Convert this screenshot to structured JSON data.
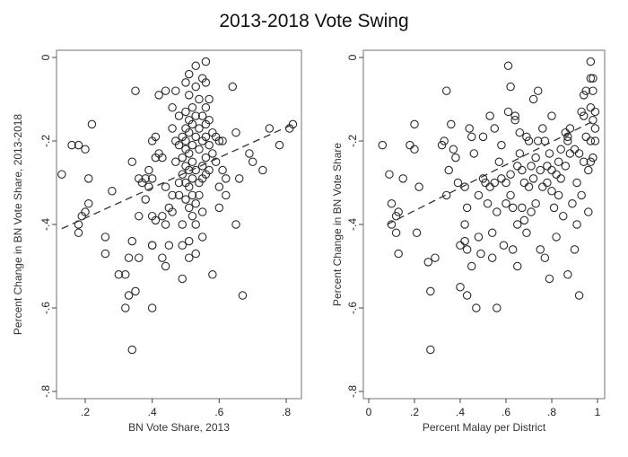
{
  "chart_data": {
    "title": "2013-2018 Vote Swing",
    "panels": [
      {
        "type": "scatter",
        "xlabel": "BN Vote Share, 2013",
        "ylabel": "Percent Change in BN Vote Share, 2013-2018",
        "xlim": [
          0.11,
          0.84
        ],
        "ylim": [
          -0.82,
          0.02
        ],
        "xticks": [
          0.2,
          0.4,
          0.6,
          0.8
        ],
        "xtick_labels": [
          ".2",
          ".4",
          ".6",
          ".8"
        ],
        "yticks": [
          0,
          -0.2,
          -0.4,
          -0.6,
          -0.8
        ],
        "ytick_labels": [
          "0",
          "-.2",
          "-.4",
          "-.6",
          "-.8"
        ],
        "fit_line": {
          "x": [
            0.13,
            0.82
          ],
          "y": [
            -0.41,
            -0.16
          ]
        },
        "points": [
          [
            0.13,
            -0.28
          ],
          [
            0.16,
            -0.21
          ],
          [
            0.18,
            -0.21
          ],
          [
            0.2,
            -0.22
          ],
          [
            0.22,
            -0.16
          ],
          [
            0.21,
            -0.29
          ],
          [
            0.21,
            -0.35
          ],
          [
            0.2,
            -0.37
          ],
          [
            0.19,
            -0.38
          ],
          [
            0.18,
            -0.4
          ],
          [
            0.18,
            -0.42
          ],
          [
            0.26,
            -0.43
          ],
          [
            0.26,
            -0.47
          ],
          [
            0.28,
            -0.32
          ],
          [
            0.3,
            -0.52
          ],
          [
            0.32,
            -0.6
          ],
          [
            0.32,
            -0.52
          ],
          [
            0.33,
            -0.57
          ],
          [
            0.33,
            -0.48
          ],
          [
            0.34,
            -0.44
          ],
          [
            0.35,
            -0.56
          ],
          [
            0.34,
            -0.7
          ],
          [
            0.36,
            -0.48
          ],
          [
            0.34,
            -0.25
          ],
          [
            0.36,
            -0.29
          ],
          [
            0.36,
            -0.38
          ],
          [
            0.37,
            -0.3
          ],
          [
            0.38,
            -0.34
          ],
          [
            0.38,
            -0.29
          ],
          [
            0.39,
            -0.27
          ],
          [
            0.39,
            -0.31
          ],
          [
            0.4,
            -0.29
          ],
          [
            0.4,
            -0.38
          ],
          [
            0.4,
            -0.45
          ],
          [
            0.4,
            -0.45
          ],
          [
            0.41,
            -0.39
          ],
          [
            0.4,
            -0.6
          ],
          [
            0.41,
            -0.24
          ],
          [
            0.35,
            -0.08
          ],
          [
            0.4,
            -0.2
          ],
          [
            0.41,
            -0.19
          ],
          [
            0.42,
            -0.23
          ],
          [
            0.42,
            -0.09
          ],
          [
            0.43,
            -0.24
          ],
          [
            0.43,
            -0.38
          ],
          [
            0.44,
            -0.4
          ],
          [
            0.43,
            -0.48
          ],
          [
            0.44,
            -0.5
          ],
          [
            0.45,
            -0.45
          ],
          [
            0.45,
            -0.36
          ],
          [
            0.44,
            -0.31
          ],
          [
            0.46,
            -0.33
          ],
          [
            0.46,
            -0.37
          ],
          [
            0.44,
            -0.08
          ],
          [
            0.46,
            -0.12
          ],
          [
            0.46,
            -0.17
          ],
          [
            0.47,
            -0.08
          ],
          [
            0.47,
            -0.2
          ],
          [
            0.47,
            -0.25
          ],
          [
            0.48,
            -0.14
          ],
          [
            0.48,
            -0.21
          ],
          [
            0.48,
            -0.3
          ],
          [
            0.48,
            -0.33
          ],
          [
            0.49,
            -0.19
          ],
          [
            0.49,
            -0.24
          ],
          [
            0.49,
            -0.28
          ],
          [
            0.49,
            -0.4
          ],
          [
            0.49,
            -0.45
          ],
          [
            0.49,
            -0.53
          ],
          [
            0.5,
            -0.06
          ],
          [
            0.5,
            -0.13
          ],
          [
            0.5,
            -0.17
          ],
          [
            0.5,
            -0.2
          ],
          [
            0.5,
            -0.22
          ],
          [
            0.5,
            -0.26
          ],
          [
            0.5,
            -0.3
          ],
          [
            0.5,
            -0.34
          ],
          [
            0.51,
            -0.04
          ],
          [
            0.51,
            -0.09
          ],
          [
            0.51,
            -0.15
          ],
          [
            0.51,
            -0.18
          ],
          [
            0.51,
            -0.23
          ],
          [
            0.51,
            -0.27
          ],
          [
            0.51,
            -0.31
          ],
          [
            0.51,
            -0.36
          ],
          [
            0.51,
            -0.44
          ],
          [
            0.51,
            -0.48
          ],
          [
            0.52,
            -0.12
          ],
          [
            0.52,
            -0.16
          ],
          [
            0.52,
            -0.21
          ],
          [
            0.52,
            -0.25
          ],
          [
            0.52,
            -0.29
          ],
          [
            0.52,
            -0.33
          ],
          [
            0.52,
            -0.38
          ],
          [
            0.53,
            -0.02
          ],
          [
            0.53,
            -0.07
          ],
          [
            0.53,
            -0.14
          ],
          [
            0.53,
            -0.19
          ],
          [
            0.53,
            -0.27
          ],
          [
            0.53,
            -0.35
          ],
          [
            0.53,
            -0.4
          ],
          [
            0.53,
            -0.47
          ],
          [
            0.54,
            -0.1
          ],
          [
            0.54,
            -0.17
          ],
          [
            0.54,
            -0.22
          ],
          [
            0.54,
            -0.3
          ],
          [
            0.54,
            -0.33
          ],
          [
            0.55,
            -0.05
          ],
          [
            0.55,
            -0.14
          ],
          [
            0.55,
            -0.2
          ],
          [
            0.55,
            -0.26
          ],
          [
            0.55,
            -0.29
          ],
          [
            0.55,
            -0.37
          ],
          [
            0.55,
            -0.43
          ],
          [
            0.56,
            -0.01
          ],
          [
            0.56,
            -0.06
          ],
          [
            0.56,
            -0.12
          ],
          [
            0.56,
            -0.16
          ],
          [
            0.56,
            -0.19
          ],
          [
            0.56,
            -0.24
          ],
          [
            0.56,
            -0.28
          ],
          [
            0.57,
            -0.1
          ],
          [
            0.57,
            -0.15
          ],
          [
            0.57,
            -0.21
          ],
          [
            0.57,
            -0.27
          ],
          [
            0.58,
            -0.18
          ],
          [
            0.58,
            -0.23
          ],
          [
            0.58,
            -0.52
          ],
          [
            0.59,
            -0.19
          ],
          [
            0.59,
            -0.25
          ],
          [
            0.6,
            -0.2
          ],
          [
            0.6,
            -0.31
          ],
          [
            0.6,
            -0.36
          ],
          [
            0.61,
            -0.2
          ],
          [
            0.61,
            -0.27
          ],
          [
            0.62,
            -0.29
          ],
          [
            0.62,
            -0.33
          ],
          [
            0.64,
            -0.07
          ],
          [
            0.65,
            -0.4
          ],
          [
            0.65,
            -0.18
          ],
          [
            0.67,
            -0.57
          ],
          [
            0.66,
            -0.29
          ],
          [
            0.69,
            -0.23
          ],
          [
            0.7,
            -0.25
          ],
          [
            0.73,
            -0.27
          ],
          [
            0.75,
            -0.17
          ],
          [
            0.78,
            -0.21
          ],
          [
            0.82,
            -0.16
          ],
          [
            0.81,
            -0.17
          ]
        ]
      },
      {
        "type": "scatter",
        "xlabel": "Percent Malay per District",
        "ylabel": "Percent Change in BN Vote Share",
        "xlim": [
          -0.025,
          1.03
        ],
        "ylim": [
          -0.82,
          0.02
        ],
        "xticks": [
          0,
          0.2,
          0.4,
          0.6,
          0.8,
          1
        ],
        "xtick_labels": [
          "0",
          ".2",
          ".4",
          ".6",
          ".8",
          "1"
        ],
        "yticks": [
          0,
          -0.2,
          -0.4,
          -0.6,
          -0.8
        ],
        "ytick_labels": [
          "0",
          "-.2",
          "-.4",
          "-.6",
          "-.8"
        ],
        "fit_line": {
          "x": [
            0.08,
            0.99
          ],
          "y": [
            -0.4,
            -0.15
          ]
        },
        "points": [
          [
            0.06,
            -0.21
          ],
          [
            0.09,
            -0.28
          ],
          [
            0.1,
            -0.35
          ],
          [
            0.1,
            -0.4
          ],
          [
            0.12,
            -0.38
          ],
          [
            0.13,
            -0.37
          ],
          [
            0.12,
            -0.42
          ],
          [
            0.13,
            -0.47
          ],
          [
            0.15,
            -0.29
          ],
          [
            0.18,
            -0.21
          ],
          [
            0.2,
            -0.22
          ],
          [
            0.2,
            -0.16
          ],
          [
            0.21,
            -0.42
          ],
          [
            0.22,
            -0.31
          ],
          [
            0.26,
            -0.49
          ],
          [
            0.27,
            -0.56
          ],
          [
            0.27,
            -0.7
          ],
          [
            0.29,
            -0.48
          ],
          [
            0.32,
            -0.21
          ],
          [
            0.33,
            -0.2
          ],
          [
            0.34,
            -0.08
          ],
          [
            0.34,
            -0.33
          ],
          [
            0.35,
            -0.27
          ],
          [
            0.36,
            -0.16
          ],
          [
            0.37,
            -0.22
          ],
          [
            0.38,
            -0.24
          ],
          [
            0.39,
            -0.3
          ],
          [
            0.4,
            -0.45
          ],
          [
            0.4,
            -0.55
          ],
          [
            0.42,
            -0.44
          ],
          [
            0.42,
            -0.31
          ],
          [
            0.42,
            -0.4
          ],
          [
            0.43,
            -0.36
          ],
          [
            0.43,
            -0.46
          ],
          [
            0.43,
            -0.57
          ],
          [
            0.44,
            -0.17
          ],
          [
            0.45,
            -0.19
          ],
          [
            0.45,
            -0.5
          ],
          [
            0.46,
            -0.23
          ],
          [
            0.47,
            -0.6
          ],
          [
            0.48,
            -0.33
          ],
          [
            0.48,
            -0.43
          ],
          [
            0.49,
            -0.47
          ],
          [
            0.5,
            -0.29
          ],
          [
            0.5,
            -0.19
          ],
          [
            0.51,
            -0.3
          ],
          [
            0.52,
            -0.35
          ],
          [
            0.53,
            -0.14
          ],
          [
            0.53,
            -0.31
          ],
          [
            0.54,
            -0.42
          ],
          [
            0.54,
            -0.48
          ],
          [
            0.55,
            -0.17
          ],
          [
            0.55,
            -0.3
          ],
          [
            0.56,
            -0.6
          ],
          [
            0.56,
            -0.37
          ],
          [
            0.57,
            -0.25
          ],
          [
            0.58,
            -0.21
          ],
          [
            0.58,
            -0.29
          ],
          [
            0.59,
            -0.45
          ],
          [
            0.6,
            -0.3
          ],
          [
            0.6,
            -0.35
          ],
          [
            0.61,
            -0.02
          ],
          [
            0.61,
            -0.13
          ],
          [
            0.62,
            -0.07
          ],
          [
            0.62,
            -0.28
          ],
          [
            0.62,
            -0.33
          ],
          [
            0.63,
            -0.36
          ],
          [
            0.63,
            -0.46
          ],
          [
            0.64,
            -0.14
          ],
          [
            0.64,
            -0.15
          ],
          [
            0.65,
            -0.26
          ],
          [
            0.65,
            -0.4
          ],
          [
            0.65,
            -0.5
          ],
          [
            0.66,
            -0.18
          ],
          [
            0.66,
            -0.23
          ],
          [
            0.67,
            -0.27
          ],
          [
            0.67,
            -0.36
          ],
          [
            0.68,
            -0.3
          ],
          [
            0.68,
            -0.39
          ],
          [
            0.69,
            -0.42
          ],
          [
            0.69,
            -0.19
          ],
          [
            0.7,
            -0.2
          ],
          [
            0.7,
            -0.31
          ],
          [
            0.71,
            -0.26
          ],
          [
            0.71,
            -0.37
          ],
          [
            0.72,
            -0.1
          ],
          [
            0.72,
            -0.29
          ],
          [
            0.73,
            -0.24
          ],
          [
            0.73,
            -0.35
          ],
          [
            0.74,
            -0.08
          ],
          [
            0.74,
            -0.2
          ],
          [
            0.75,
            -0.27
          ],
          [
            0.75,
            -0.46
          ],
          [
            0.76,
            -0.17
          ],
          [
            0.76,
            -0.31
          ],
          [
            0.77,
            -0.2
          ],
          [
            0.77,
            -0.48
          ],
          [
            0.78,
            -0.26
          ],
          [
            0.78,
            -0.3
          ],
          [
            0.79,
            -0.23
          ],
          [
            0.79,
            -0.53
          ],
          [
            0.8,
            -0.14
          ],
          [
            0.8,
            -0.27
          ],
          [
            0.8,
            -0.32
          ],
          [
            0.81,
            -0.36
          ],
          [
            0.82,
            -0.43
          ],
          [
            0.82,
            -0.28
          ],
          [
            0.83,
            -0.25
          ],
          [
            0.83,
            -0.33
          ],
          [
            0.84,
            -0.22
          ],
          [
            0.84,
            -0.29
          ],
          [
            0.85,
            -0.38
          ],
          [
            0.86,
            -0.18
          ],
          [
            0.86,
            -0.26
          ],
          [
            0.87,
            -0.19
          ],
          [
            0.87,
            -0.2
          ],
          [
            0.87,
            -0.52
          ],
          [
            0.88,
            -0.17
          ],
          [
            0.88,
            -0.23
          ],
          [
            0.89,
            -0.35
          ],
          [
            0.9,
            -0.22
          ],
          [
            0.9,
            -0.46
          ],
          [
            0.91,
            -0.3
          ],
          [
            0.91,
            -0.4
          ],
          [
            0.92,
            -0.23
          ],
          [
            0.92,
            -0.57
          ],
          [
            0.93,
            -0.13
          ],
          [
            0.93,
            -0.33
          ],
          [
            0.94,
            -0.09
          ],
          [
            0.94,
            -0.14
          ],
          [
            0.94,
            -0.25
          ],
          [
            0.95,
            -0.08
          ],
          [
            0.95,
            -0.19
          ],
          [
            0.96,
            -0.27
          ],
          [
            0.96,
            -0.37
          ],
          [
            0.97,
            -0.01
          ],
          [
            0.97,
            -0.05
          ],
          [
            0.97,
            -0.12
          ],
          [
            0.97,
            -0.2
          ],
          [
            0.97,
            -0.25
          ],
          [
            0.98,
            -0.05
          ],
          [
            0.98,
            -0.08
          ],
          [
            0.98,
            -0.15
          ],
          [
            0.98,
            -0.24
          ],
          [
            0.99,
            -0.13
          ],
          [
            0.99,
            -0.17
          ],
          [
            0.99,
            -0.2
          ]
        ]
      }
    ]
  }
}
